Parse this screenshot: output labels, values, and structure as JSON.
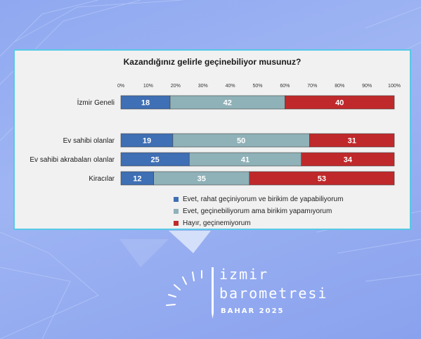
{
  "chart_data": {
    "type": "bar",
    "orientation": "horizontal",
    "stacked": true,
    "title": "Kazandığınız gelirle geçinebiliyor musunuz?",
    "xlim": [
      0,
      100
    ],
    "x_ticks": [
      "0%",
      "10%",
      "20%",
      "30%",
      "40%",
      "50%",
      "60%",
      "70%",
      "80%",
      "90%",
      "100%"
    ],
    "categories": [
      "İzmir Geneli",
      "Ev sahibi olanlar",
      "Ev sahibi akrabaları olanlar",
      "Kiracılar"
    ],
    "series": [
      {
        "name": "Evet, rahat geçiniyorum ve birikim de yapabiliyorum",
        "values": [
          18,
          19,
          25,
          12
        ],
        "color": "#3f6fb4"
      },
      {
        "name": "Evet, geçinebiliyorum ama birikim yapamıyorum",
        "values": [
          42,
          50,
          41,
          35
        ],
        "color": "#8fb1b8"
      },
      {
        "name": "Hayır, geçinemiyorum",
        "values": [
          40,
          31,
          34,
          53
        ],
        "color": "#c0292b"
      }
    ],
    "legend_position": "bottom-center",
    "grid": false
  },
  "branding": {
    "line1": "izmir",
    "line2": "barometresi",
    "season": "BAHAR 2025"
  },
  "colors": {
    "card_border": "#58c8e6",
    "background": "#8fa8f0"
  }
}
